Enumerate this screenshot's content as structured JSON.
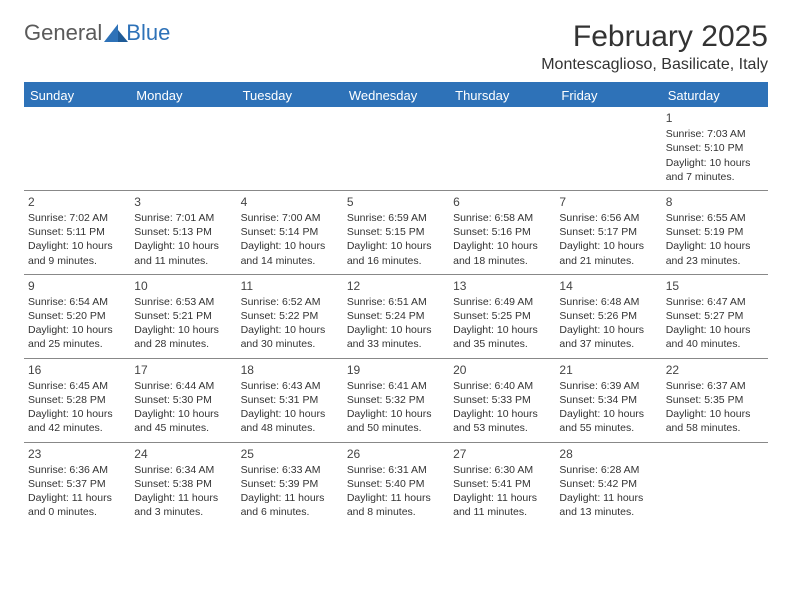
{
  "logo": {
    "text1": "General",
    "text2": "Blue"
  },
  "header": {
    "month_title": "February 2025",
    "location": "Montescaglioso, Basilicate, Italy"
  },
  "colors": {
    "brand_blue": "#2e72b8",
    "text": "#333333",
    "grid_line": "#888888",
    "bg": "#ffffff"
  },
  "day_headers": [
    "Sunday",
    "Monday",
    "Tuesday",
    "Wednesday",
    "Thursday",
    "Friday",
    "Saturday"
  ],
  "weeks": [
    [
      {
        "day": ""
      },
      {
        "day": ""
      },
      {
        "day": ""
      },
      {
        "day": ""
      },
      {
        "day": ""
      },
      {
        "day": ""
      },
      {
        "day": "1",
        "sunrise": "Sunrise: 7:03 AM",
        "sunset": "Sunset: 5:10 PM",
        "daylight": "Daylight: 10 hours and 7 minutes."
      }
    ],
    [
      {
        "day": "2",
        "sunrise": "Sunrise: 7:02 AM",
        "sunset": "Sunset: 5:11 PM",
        "daylight": "Daylight: 10 hours and 9 minutes."
      },
      {
        "day": "3",
        "sunrise": "Sunrise: 7:01 AM",
        "sunset": "Sunset: 5:13 PM",
        "daylight": "Daylight: 10 hours and 11 minutes."
      },
      {
        "day": "4",
        "sunrise": "Sunrise: 7:00 AM",
        "sunset": "Sunset: 5:14 PM",
        "daylight": "Daylight: 10 hours and 14 minutes."
      },
      {
        "day": "5",
        "sunrise": "Sunrise: 6:59 AM",
        "sunset": "Sunset: 5:15 PM",
        "daylight": "Daylight: 10 hours and 16 minutes."
      },
      {
        "day": "6",
        "sunrise": "Sunrise: 6:58 AM",
        "sunset": "Sunset: 5:16 PM",
        "daylight": "Daylight: 10 hours and 18 minutes."
      },
      {
        "day": "7",
        "sunrise": "Sunrise: 6:56 AM",
        "sunset": "Sunset: 5:17 PM",
        "daylight": "Daylight: 10 hours and 21 minutes."
      },
      {
        "day": "8",
        "sunrise": "Sunrise: 6:55 AM",
        "sunset": "Sunset: 5:19 PM",
        "daylight": "Daylight: 10 hours and 23 minutes."
      }
    ],
    [
      {
        "day": "9",
        "sunrise": "Sunrise: 6:54 AM",
        "sunset": "Sunset: 5:20 PM",
        "daylight": "Daylight: 10 hours and 25 minutes."
      },
      {
        "day": "10",
        "sunrise": "Sunrise: 6:53 AM",
        "sunset": "Sunset: 5:21 PM",
        "daylight": "Daylight: 10 hours and 28 minutes."
      },
      {
        "day": "11",
        "sunrise": "Sunrise: 6:52 AM",
        "sunset": "Sunset: 5:22 PM",
        "daylight": "Daylight: 10 hours and 30 minutes."
      },
      {
        "day": "12",
        "sunrise": "Sunrise: 6:51 AM",
        "sunset": "Sunset: 5:24 PM",
        "daylight": "Daylight: 10 hours and 33 minutes."
      },
      {
        "day": "13",
        "sunrise": "Sunrise: 6:49 AM",
        "sunset": "Sunset: 5:25 PM",
        "daylight": "Daylight: 10 hours and 35 minutes."
      },
      {
        "day": "14",
        "sunrise": "Sunrise: 6:48 AM",
        "sunset": "Sunset: 5:26 PM",
        "daylight": "Daylight: 10 hours and 37 minutes."
      },
      {
        "day": "15",
        "sunrise": "Sunrise: 6:47 AM",
        "sunset": "Sunset: 5:27 PM",
        "daylight": "Daylight: 10 hours and 40 minutes."
      }
    ],
    [
      {
        "day": "16",
        "sunrise": "Sunrise: 6:45 AM",
        "sunset": "Sunset: 5:28 PM",
        "daylight": "Daylight: 10 hours and 42 minutes."
      },
      {
        "day": "17",
        "sunrise": "Sunrise: 6:44 AM",
        "sunset": "Sunset: 5:30 PM",
        "daylight": "Daylight: 10 hours and 45 minutes."
      },
      {
        "day": "18",
        "sunrise": "Sunrise: 6:43 AM",
        "sunset": "Sunset: 5:31 PM",
        "daylight": "Daylight: 10 hours and 48 minutes."
      },
      {
        "day": "19",
        "sunrise": "Sunrise: 6:41 AM",
        "sunset": "Sunset: 5:32 PM",
        "daylight": "Daylight: 10 hours and 50 minutes."
      },
      {
        "day": "20",
        "sunrise": "Sunrise: 6:40 AM",
        "sunset": "Sunset: 5:33 PM",
        "daylight": "Daylight: 10 hours and 53 minutes."
      },
      {
        "day": "21",
        "sunrise": "Sunrise: 6:39 AM",
        "sunset": "Sunset: 5:34 PM",
        "daylight": "Daylight: 10 hours and 55 minutes."
      },
      {
        "day": "22",
        "sunrise": "Sunrise: 6:37 AM",
        "sunset": "Sunset: 5:35 PM",
        "daylight": "Daylight: 10 hours and 58 minutes."
      }
    ],
    [
      {
        "day": "23",
        "sunrise": "Sunrise: 6:36 AM",
        "sunset": "Sunset: 5:37 PM",
        "daylight": "Daylight: 11 hours and 0 minutes."
      },
      {
        "day": "24",
        "sunrise": "Sunrise: 6:34 AM",
        "sunset": "Sunset: 5:38 PM",
        "daylight": "Daylight: 11 hours and 3 minutes."
      },
      {
        "day": "25",
        "sunrise": "Sunrise: 6:33 AM",
        "sunset": "Sunset: 5:39 PM",
        "daylight": "Daylight: 11 hours and 6 minutes."
      },
      {
        "day": "26",
        "sunrise": "Sunrise: 6:31 AM",
        "sunset": "Sunset: 5:40 PM",
        "daylight": "Daylight: 11 hours and 8 minutes."
      },
      {
        "day": "27",
        "sunrise": "Sunrise: 6:30 AM",
        "sunset": "Sunset: 5:41 PM",
        "daylight": "Daylight: 11 hours and 11 minutes."
      },
      {
        "day": "28",
        "sunrise": "Sunrise: 6:28 AM",
        "sunset": "Sunset: 5:42 PM",
        "daylight": "Daylight: 11 hours and 13 minutes."
      },
      {
        "day": ""
      }
    ]
  ]
}
